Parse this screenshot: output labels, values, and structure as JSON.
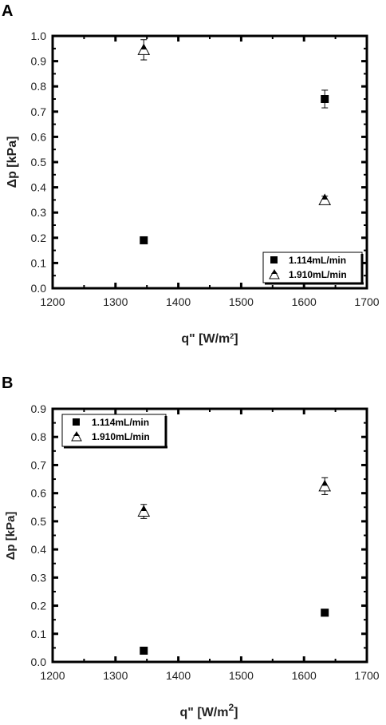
{
  "chart_data": [
    {
      "panel": "A",
      "type": "scatter",
      "xlabel": "q\" [W/m",
      "xlabel_sup": "2",
      "xlabel_end": "]",
      "ylabel": "Δp [kPa]",
      "xlim": [
        1200,
        1700
      ],
      "ylim": [
        0.0,
        1.0
      ],
      "xticks": [
        "1200",
        "1300",
        "1400",
        "1500",
        "1600",
        "1700"
      ],
      "yticks": [
        "0.0",
        "0.1",
        "0.2",
        "0.3",
        "0.4",
        "0.5",
        "0.6",
        "0.7",
        "0.8",
        "0.9",
        "1.0"
      ],
      "legend_position": "bottom-right",
      "series": [
        {
          "name": "1.114mL/min",
          "marker": "square",
          "color": "#000000",
          "points": [
            {
              "x": 1345,
              "y": 0.19,
              "err": 0.0
            },
            {
              "x": 1633,
              "y": 0.75,
              "err": 0.035
            }
          ]
        },
        {
          "name": "1.910mL/min",
          "marker": "triangle",
          "color": "#000000",
          "points": [
            {
              "x": 1345,
              "y": 0.945,
              "err": 0.04
            },
            {
              "x": 1633,
              "y": 0.35,
              "err": 0.015
            }
          ]
        }
      ]
    },
    {
      "panel": "B",
      "type": "scatter",
      "xlabel": "q\" [W/m",
      "xlabel_sup": "2",
      "xlabel_end": "]",
      "ylabel": "Δp [kPa]",
      "xlim": [
        1200,
        1700
      ],
      "ylim": [
        0.0,
        0.9
      ],
      "xticks": [
        "1200",
        "1300",
        "1400",
        "1500",
        "1600",
        "1700"
      ],
      "yticks": [
        "0.0",
        "0.1",
        "0.2",
        "0.3",
        "0.4",
        "0.5",
        "0.6",
        "0.7",
        "0.8",
        "0.9"
      ],
      "legend_position": "top-left",
      "series": [
        {
          "name": "1.114mL/min",
          "marker": "square",
          "color": "#000000",
          "points": [
            {
              "x": 1345,
              "y": 0.04,
              "err": 0.0
            },
            {
              "x": 1633,
              "y": 0.175,
              "err": 0.0
            }
          ]
        },
        {
          "name": "1.910mL/min",
          "marker": "triangle",
          "color": "#000000",
          "points": [
            {
              "x": 1345,
              "y": 0.535,
              "err": 0.025
            },
            {
              "x": 1633,
              "y": 0.625,
              "err": 0.03
            }
          ]
        }
      ]
    }
  ]
}
